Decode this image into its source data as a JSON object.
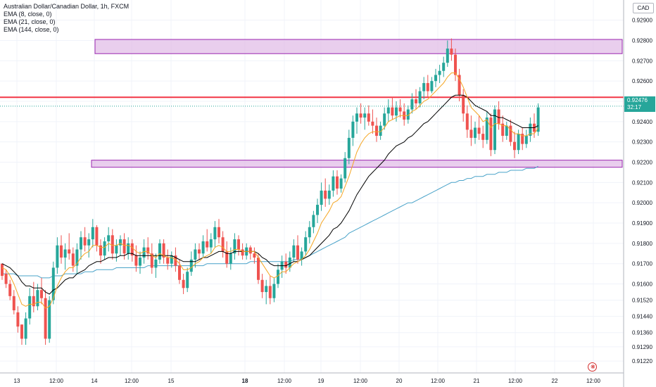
{
  "header": {
    "title": "Australian Dollar/Canadian Dollar, 1h, FXCM",
    "indicators": [
      "EMA (8, close, 0)",
      "EMA (21, close, 0)",
      "EMA (144, close, 0)"
    ],
    "currency": "CAD"
  },
  "last_price": {
    "value": "0.92476",
    "countdown": "32:17",
    "color": "#26a69a"
  },
  "colors": {
    "up": "#26a69a",
    "down": "#ef5350",
    "ema8": "#f5a623",
    "ema21": "#000000",
    "ema144": "#4aa3c9",
    "zone_fill": "#e1bee7",
    "zone_stroke": "#9c27b0",
    "resistance": "#f23645"
  },
  "chart_data": {
    "type": "candlestick",
    "symbol": "AUDCAD",
    "interval": "1h",
    "y_ticks": [
      "0.92900",
      "0.92800",
      "0.92700",
      "0.92600",
      "0.92500",
      "0.92400",
      "0.92300",
      "0.92200",
      "0.92100",
      "0.92000",
      "0.91900",
      "0.91800",
      "0.91700",
      "0.91600",
      "0.91520",
      "0.91440",
      "0.91360",
      "0.91290",
      "0.91220"
    ],
    "x_ticks": [
      "13",
      "12:00",
      "14",
      "12:00",
      "15",
      "18",
      "12:00",
      "19",
      "12:00",
      "20",
      "12:00",
      "21",
      "12:00",
      "22",
      "12:00"
    ],
    "ylim": [
      0.9121,
      0.9293
    ],
    "zones": [
      {
        "low": 0.92735,
        "high": 0.92805,
        "start": 24,
        "end": 160
      },
      {
        "low": 0.92175,
        "high": 0.9221,
        "start": 23,
        "end": 160
      }
    ],
    "horizontal_lines": [
      {
        "price": 0.9252,
        "type": "resistance"
      }
    ],
    "last_price_line": 0.92476,
    "candles": [
      [
        0.917,
        0.917,
        0.9162,
        0.9164
      ],
      [
        0.9165,
        0.9167,
        0.9158,
        0.916
      ],
      [
        0.916,
        0.9162,
        0.9152,
        0.9154
      ],
      [
        0.9154,
        0.9157,
        0.9145,
        0.9147
      ],
      [
        0.9146,
        0.9149,
        0.9136,
        0.9139
      ],
      [
        0.914,
        0.914,
        0.913,
        0.9133
      ],
      [
        0.9133,
        0.9146,
        0.913,
        0.9143
      ],
      [
        0.9143,
        0.9158,
        0.914,
        0.9154
      ],
      [
        0.9154,
        0.9161,
        0.9146,
        0.9149
      ],
      [
        0.9149,
        0.916,
        0.9147,
        0.9157
      ],
      [
        0.9157,
        0.9163,
        0.915,
        0.9153
      ],
      [
        0.9153,
        0.9157,
        0.913,
        0.9133
      ],
      [
        0.9133,
        0.9154,
        0.9131,
        0.9152
      ],
      [
        0.9152,
        0.9171,
        0.915,
        0.9168
      ],
      [
        0.9168,
        0.9183,
        0.9165,
        0.9179
      ],
      [
        0.9179,
        0.9184,
        0.917,
        0.9173
      ],
      [
        0.9173,
        0.918,
        0.9167,
        0.9177
      ],
      [
        0.9177,
        0.9185,
        0.9172,
        0.9175
      ],
      [
        0.9175,
        0.9178,
        0.9166,
        0.9169
      ],
      [
        0.9169,
        0.918,
        0.9165,
        0.9177
      ],
      [
        0.9177,
        0.9186,
        0.9172,
        0.9183
      ],
      [
        0.9183,
        0.9188,
        0.9176,
        0.9179
      ],
      [
        0.9179,
        0.9185,
        0.9173,
        0.9182
      ],
      [
        0.9182,
        0.9192,
        0.9178,
        0.9188
      ],
      [
        0.9188,
        0.9189,
        0.9176,
        0.9179
      ],
      [
        0.9179,
        0.9182,
        0.917,
        0.9174
      ],
      [
        0.9174,
        0.9183,
        0.9172,
        0.9181
      ],
      [
        0.9181,
        0.9188,
        0.9176,
        0.9184
      ],
      [
        0.9184,
        0.9187,
        0.9172,
        0.9175
      ],
      [
        0.9175,
        0.9182,
        0.9171,
        0.9179
      ],
      [
        0.9179,
        0.9184,
        0.9174,
        0.9182
      ],
      [
        0.9182,
        0.9185,
        0.9172,
        0.9175
      ],
      [
        0.9175,
        0.9183,
        0.9172,
        0.918
      ],
      [
        0.918,
        0.9182,
        0.9171,
        0.9174
      ],
      [
        0.9174,
        0.9179,
        0.9166,
        0.9169
      ],
      [
        0.9169,
        0.9176,
        0.9165,
        0.9173
      ],
      [
        0.9173,
        0.9182,
        0.917,
        0.9178
      ],
      [
        0.9178,
        0.9183,
        0.9172,
        0.9175
      ],
      [
        0.9175,
        0.918,
        0.9165,
        0.9168
      ],
      [
        0.9168,
        0.9175,
        0.9163,
        0.9172
      ],
      [
        0.9172,
        0.9182,
        0.917,
        0.918
      ],
      [
        0.918,
        0.9182,
        0.917,
        0.9173
      ],
      [
        0.9173,
        0.9177,
        0.9167,
        0.917
      ],
      [
        0.917,
        0.9176,
        0.9168,
        0.9174
      ],
      [
        0.9174,
        0.9178,
        0.9166,
        0.9169
      ],
      [
        0.9169,
        0.9172,
        0.916,
        0.9162
      ],
      [
        0.9162,
        0.9165,
        0.9155,
        0.9158
      ],
      [
        0.9158,
        0.9168,
        0.9156,
        0.9166
      ],
      [
        0.9166,
        0.9176,
        0.9164,
        0.9172
      ],
      [
        0.9172,
        0.918,
        0.9168,
        0.9177
      ],
      [
        0.9177,
        0.918,
        0.9172,
        0.9175
      ],
      [
        0.9175,
        0.9184,
        0.9173,
        0.9181
      ],
      [
        0.9181,
        0.9187,
        0.9176,
        0.9178
      ],
      [
        0.9178,
        0.9185,
        0.9175,
        0.9182
      ],
      [
        0.9182,
        0.9191,
        0.9178,
        0.9188
      ],
      [
        0.9188,
        0.9192,
        0.918,
        0.9183
      ],
      [
        0.9183,
        0.9186,
        0.9173,
        0.9176
      ],
      [
        0.9176,
        0.9181,
        0.9168,
        0.917
      ],
      [
        0.917,
        0.9178,
        0.9167,
        0.9175
      ],
      [
        0.9175,
        0.9185,
        0.9172,
        0.9182
      ],
      [
        0.9182,
        0.9184,
        0.9174,
        0.9177
      ],
      [
        0.9177,
        0.918,
        0.9172,
        0.9174
      ],
      [
        0.9174,
        0.918,
        0.9172,
        0.9178
      ],
      [
        0.9178,
        0.9179,
        0.9172,
        0.9175
      ],
      [
        0.9175,
        0.9178,
        0.917,
        0.9173
      ],
      [
        0.9173,
        0.9175,
        0.916,
        0.9162
      ],
      [
        0.9162,
        0.9165,
        0.9153,
        0.9156
      ],
      [
        0.9156,
        0.9162,
        0.915,
        0.9159
      ],
      [
        0.9159,
        0.9164,
        0.915,
        0.9153
      ],
      [
        0.9153,
        0.9163,
        0.9151,
        0.916
      ],
      [
        0.916,
        0.917,
        0.9158,
        0.9167
      ],
      [
        0.9167,
        0.9174,
        0.9163,
        0.9171
      ],
      [
        0.9171,
        0.9175,
        0.9165,
        0.9168
      ],
      [
        0.9168,
        0.9176,
        0.9166,
        0.9173
      ],
      [
        0.9173,
        0.9182,
        0.9171,
        0.9179
      ],
      [
        0.9179,
        0.9184,
        0.917,
        0.9172
      ],
      [
        0.9172,
        0.9178,
        0.9169,
        0.9176
      ],
      [
        0.9176,
        0.9186,
        0.9174,
        0.9183
      ],
      [
        0.9183,
        0.9191,
        0.918,
        0.9188
      ],
      [
        0.9188,
        0.9196,
        0.9185,
        0.9194
      ],
      [
        0.9194,
        0.9202,
        0.919,
        0.9199
      ],
      [
        0.9199,
        0.921,
        0.9196,
        0.9206
      ],
      [
        0.9206,
        0.9212,
        0.9198,
        0.9202
      ],
      [
        0.9202,
        0.9209,
        0.9199,
        0.9206
      ],
      [
        0.9206,
        0.9216,
        0.9203,
        0.9213
      ],
      [
        0.9213,
        0.9216,
        0.9204,
        0.9207
      ],
      [
        0.9207,
        0.9214,
        0.9205,
        0.9212
      ],
      [
        0.9212,
        0.9225,
        0.921,
        0.9222
      ],
      [
        0.9222,
        0.9236,
        0.9219,
        0.9232
      ],
      [
        0.9232,
        0.9243,
        0.9228,
        0.924
      ],
      [
        0.924,
        0.9247,
        0.9234,
        0.9244
      ],
      [
        0.9244,
        0.9249,
        0.9239,
        0.9242
      ],
      [
        0.9242,
        0.9247,
        0.9236,
        0.9244
      ],
      [
        0.9244,
        0.9248,
        0.9238,
        0.924
      ],
      [
        0.924,
        0.9246,
        0.9234,
        0.9238
      ],
      [
        0.9238,
        0.9242,
        0.923,
        0.9233
      ],
      [
        0.9233,
        0.924,
        0.9231,
        0.9238
      ],
      [
        0.9238,
        0.9247,
        0.9236,
        0.9244
      ],
      [
        0.9244,
        0.9251,
        0.924,
        0.9247
      ],
      [
        0.9247,
        0.9252,
        0.9241,
        0.9243
      ],
      [
        0.9243,
        0.925,
        0.924,
        0.9247
      ],
      [
        0.9247,
        0.9251,
        0.9242,
        0.9245
      ],
      [
        0.9245,
        0.9249,
        0.9238,
        0.9241
      ],
      [
        0.9241,
        0.9248,
        0.9239,
        0.9246
      ],
      [
        0.9246,
        0.9254,
        0.9244,
        0.9251
      ],
      [
        0.9251,
        0.9256,
        0.9246,
        0.9249
      ],
      [
        0.9249,
        0.9257,
        0.9247,
        0.9255
      ],
      [
        0.9255,
        0.9262,
        0.9251,
        0.9259
      ],
      [
        0.9259,
        0.9263,
        0.9252,
        0.9255
      ],
      [
        0.9255,
        0.9262,
        0.9254,
        0.926
      ],
      [
        0.926,
        0.9266,
        0.9257,
        0.9263
      ],
      [
        0.9263,
        0.9268,
        0.9259,
        0.9265
      ],
      [
        0.9265,
        0.9272,
        0.9262,
        0.9269
      ],
      [
        0.9269,
        0.928,
        0.9267,
        0.9276
      ],
      [
        0.9276,
        0.9281,
        0.927,
        0.9273
      ],
      [
        0.9273,
        0.9276,
        0.926,
        0.9263
      ],
      [
        0.9263,
        0.9266,
        0.925,
        0.9253
      ],
      [
        0.9253,
        0.9256,
        0.924,
        0.9244
      ],
      [
        0.9244,
        0.9248,
        0.9232,
        0.9236
      ],
      [
        0.9236,
        0.9243,
        0.9228,
        0.9232
      ],
      [
        0.9232,
        0.924,
        0.9229,
        0.9237
      ],
      [
        0.9237,
        0.9243,
        0.9231,
        0.9234
      ],
      [
        0.9234,
        0.9238,
        0.9227,
        0.9231
      ],
      [
        0.9231,
        0.9245,
        0.9229,
        0.9242
      ],
      [
        0.9242,
        0.9244,
        0.9223,
        0.9226
      ],
      [
        0.9226,
        0.9248,
        0.9224,
        0.9246
      ],
      [
        0.9246,
        0.925,
        0.9236,
        0.9239
      ],
      [
        0.9239,
        0.9243,
        0.923,
        0.9233
      ],
      [
        0.9233,
        0.924,
        0.9231,
        0.9238
      ],
      [
        0.9238,
        0.9241,
        0.9228,
        0.923
      ],
      [
        0.923,
        0.9235,
        0.9222,
        0.9226
      ],
      [
        0.9226,
        0.9236,
        0.9224,
        0.9234
      ],
      [
        0.9234,
        0.9237,
        0.9226,
        0.9229
      ],
      [
        0.9229,
        0.9236,
        0.9227,
        0.9233
      ],
      [
        0.9233,
        0.9242,
        0.923,
        0.9239
      ],
      [
        0.9239,
        0.9244,
        0.9232,
        0.9235
      ],
      [
        0.9235,
        0.9249,
        0.9233,
        0.9247
      ]
    ],
    "ema_8": [
      0.9168,
      0.9167,
      0.9164,
      0.916,
      0.9155,
      0.915,
      0.9149,
      0.915,
      0.915,
      0.9151,
      0.9151,
      0.9148,
      0.9149,
      0.9153,
      0.9159,
      0.9163,
      0.9166,
      0.9168,
      0.9168,
      0.917,
      0.9173,
      0.9175,
      0.9176,
      0.9179,
      0.9179,
      0.9178,
      0.9178,
      0.918,
      0.9179,
      0.9179,
      0.918,
      0.9179,
      0.9179,
      0.9178,
      0.9176,
      0.9175,
      0.9176,
      0.9176,
      0.9174,
      0.9173,
      0.9175,
      0.9174,
      0.9173,
      0.9173,
      0.9172,
      0.917,
      0.9167,
      0.9167,
      0.9168,
      0.917,
      0.9171,
      0.9173,
      0.9174,
      0.9175,
      0.9178,
      0.9179,
      0.9178,
      0.9176,
      0.9176,
      0.9177,
      0.9177,
      0.9176,
      0.9176,
      0.9176,
      0.9176,
      0.9173,
      0.917,
      0.9167,
      0.9164,
      0.9163,
      0.9164,
      0.9166,
      0.9166,
      0.9168,
      0.917,
      0.9171,
      0.9172,
      0.9174,
      0.9177,
      0.9181,
      0.9185,
      0.919,
      0.9193,
      0.9196,
      0.92,
      0.9201,
      0.9203,
      0.9208,
      0.9213,
      0.9219,
      0.9225,
      0.9229,
      0.9232,
      0.9234,
      0.9235,
      0.9235,
      0.9235,
      0.9237,
      0.924,
      0.9241,
      0.9242,
      0.9243,
      0.9243,
      0.9243,
      0.9245,
      0.9246,
      0.9248,
      0.925,
      0.9251,
      0.9253,
      0.9255,
      0.9257,
      0.9259,
      0.9262,
      0.9264,
      0.9264,
      0.9261,
      0.9257,
      0.9252,
      0.9247,
      0.9245,
      0.9243,
      0.924,
      0.9241,
      0.9237,
      0.9239,
      0.9239,
      0.9238,
      0.9238,
      0.9236,
      0.9234,
      0.9234,
      0.9233,
      0.9233,
      0.9234,
      0.9234,
      0.9237
    ],
    "ema_21": [
      0.917,
      0.9169,
      0.9168,
      0.9166,
      0.9164,
      0.9161,
      0.9159,
      0.9159,
      0.9158,
      0.9158,
      0.9158,
      0.9156,
      0.9155,
      0.9157,
      0.9158,
      0.916,
      0.9162,
      0.9163,
      0.9163,
      0.9165,
      0.9166,
      0.9167,
      0.9169,
      0.917,
      0.9171,
      0.9171,
      0.9172,
      0.9173,
      0.9173,
      0.9173,
      0.9174,
      0.9174,
      0.9175,
      0.9175,
      0.9174,
      0.9174,
      0.9174,
      0.9174,
      0.9174,
      0.9174,
      0.9174,
      0.9174,
      0.9174,
      0.9174,
      0.9173,
      0.9172,
      0.9171,
      0.9171,
      0.9171,
      0.9171,
      0.9172,
      0.9173,
      0.9173,
      0.9174,
      0.9175,
      0.9176,
      0.9176,
      0.9175,
      0.9175,
      0.9176,
      0.9176,
      0.9176,
      0.9176,
      0.9176,
      0.9176,
      0.9175,
      0.9173,
      0.9172,
      0.917,
      0.9169,
      0.9169,
      0.9169,
      0.9169,
      0.917,
      0.9171,
      0.9171,
      0.9172,
      0.9173,
      0.9174,
      0.9176,
      0.9178,
      0.918,
      0.9182,
      0.9184,
      0.9187,
      0.9188,
      0.919,
      0.9193,
      0.9196,
      0.92,
      0.9204,
      0.9207,
      0.921,
      0.9213,
      0.9215,
      0.9217,
      0.9219,
      0.9221,
      0.9224,
      0.9226,
      0.9228,
      0.9229,
      0.923,
      0.9232,
      0.9233,
      0.9235,
      0.9237,
      0.9239,
      0.924,
      0.9242,
      0.9244,
      0.9246,
      0.9248,
      0.925,
      0.9252,
      0.9253,
      0.9253,
      0.9253,
      0.9252,
      0.925,
      0.9248,
      0.9247,
      0.9246,
      0.9245,
      0.9243,
      0.9243,
      0.9242,
      0.9242,
      0.9241,
      0.924,
      0.9239,
      0.9238,
      0.9237,
      0.9237,
      0.9237,
      0.9237,
      0.9238
    ],
    "ema_144": [
      0.9165,
      0.9165,
      0.9165,
      0.9165,
      0.9164,
      0.9164,
      0.9164,
      0.9164,
      0.9164,
      0.9164,
      0.9163,
      0.9163,
      0.9163,
      0.9164,
      0.9164,
      0.9164,
      0.9165,
      0.9165,
      0.9165,
      0.9165,
      0.9165,
      0.9166,
      0.9166,
      0.9166,
      0.9167,
      0.9167,
      0.9167,
      0.9167,
      0.9167,
      0.9168,
      0.9168,
      0.9168,
      0.9168,
      0.9168,
      0.9168,
      0.9168,
      0.9168,
      0.9169,
      0.9169,
      0.9169,
      0.9169,
      0.9169,
      0.9169,
      0.9169,
      0.9169,
      0.9169,
      0.9169,
      0.9169,
      0.9169,
      0.9169,
      0.9169,
      0.9169,
      0.917,
      0.917,
      0.917,
      0.917,
      0.917,
      0.917,
      0.917,
      0.917,
      0.917,
      0.917,
      0.917,
      0.9171,
      0.9171,
      0.9171,
      0.9171,
      0.9171,
      0.9171,
      0.9171,
      0.9171,
      0.9171,
      0.9171,
      0.9171,
      0.9172,
      0.9172,
      0.9172,
      0.9173,
      0.9174,
      0.9175,
      0.9176,
      0.9177,
      0.9178,
      0.9179,
      0.918,
      0.9181,
      0.9182,
      0.9183,
      0.9185,
      0.9186,
      0.9187,
      0.9188,
      0.9189,
      0.919,
      0.9191,
      0.9192,
      0.9193,
      0.9194,
      0.9195,
      0.9196,
      0.9197,
      0.9198,
      0.9199,
      0.92,
      0.92,
      0.9201,
      0.9202,
      0.9203,
      0.9204,
      0.9205,
      0.9206,
      0.9207,
      0.9208,
      0.9209,
      0.921,
      0.921,
      0.9211,
      0.9211,
      0.9212,
      0.9212,
      0.9213,
      0.9213,
      0.9213,
      0.9214,
      0.9214,
      0.9214,
      0.9215,
      0.9215,
      0.9215,
      0.9216,
      0.9216,
      0.9216,
      0.9216,
      0.9217,
      0.9217,
      0.9217,
      0.9218
    ]
  }
}
